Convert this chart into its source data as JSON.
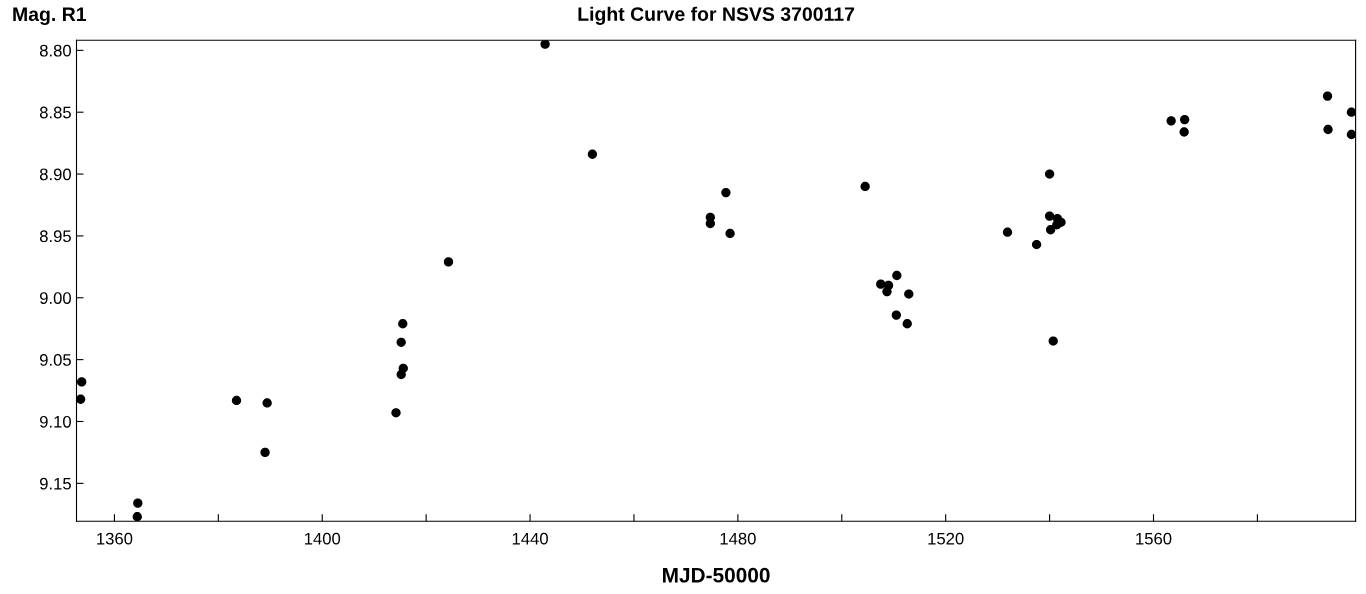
{
  "chart_data": {
    "type": "scatter",
    "title": "Light Curve for NSVS 3700117",
    "xlabel": "MJD-50000",
    "ylabel": "Mag. R1",
    "x": [
      1353.7,
      1353.5,
      1364.5,
      1364.4,
      1383.5,
      1389.4,
      1389.0,
      1414.2,
      1415.5,
      1415.2,
      1415.6,
      1415.2,
      1424.3,
      1442.9,
      1452.0,
      1477.7,
      1474.7,
      1474.7,
      1478.5,
      1504.5,
      1507.5,
      1509.0,
      1508.7,
      1510.6,
      1510.5,
      1512.9,
      1512.6,
      1531.9,
      1537.5,
      1540.0,
      1540.0,
      1540.2,
      1541.5,
      1542.2,
      1541.4,
      1540.7,
      1563.4,
      1566.0,
      1565.9,
      1593.5,
      1593.6,
      1598.1,
      1598.1
    ],
    "values": [
      9.068,
      9.082,
      9.166,
      9.177,
      9.083,
      9.085,
      9.125,
      9.093,
      9.021,
      9.036,
      9.057,
      9.062,
      8.971,
      8.795,
      8.884,
      8.915,
      8.935,
      8.94,
      8.948,
      8.91,
      8.989,
      8.99,
      8.995,
      8.982,
      9.014,
      8.997,
      9.021,
      8.947,
      8.957,
      8.9,
      8.934,
      8.945,
      8.936,
      8.939,
      8.941,
      9.035,
      8.857,
      8.856,
      8.866,
      8.837,
      8.864,
      8.85,
      8.868
    ],
    "color": "#000000",
    "marker": "circle",
    "grid": false,
    "legend": false,
    "xlim": [
      1352.7,
      1598.9
    ],
    "ylim": [
      9.1806,
      8.7918
    ],
    "xticks": [
      {
        "value": 1360,
        "label": "1360"
      },
      {
        "value": 1380,
        "label": null
      },
      {
        "value": 1400,
        "label": "1400"
      },
      {
        "value": 1420,
        "label": null
      },
      {
        "value": 1440,
        "label": "1440"
      },
      {
        "value": 1460,
        "label": null
      },
      {
        "value": 1480,
        "label": "1480"
      },
      {
        "value": 1500,
        "label": null
      },
      {
        "value": 1520,
        "label": "1520"
      },
      {
        "value": 1540,
        "label": null
      },
      {
        "value": 1560,
        "label": "1560"
      },
      {
        "value": 1580,
        "label": null
      }
    ],
    "yticks": [
      {
        "value": 8.8,
        "label": "8.80"
      },
      {
        "value": 8.85,
        "label": "8.85"
      },
      {
        "value": 8.9,
        "label": "8.90"
      },
      {
        "value": 8.95,
        "label": "8.95"
      },
      {
        "value": 9.0,
        "label": "9.00"
      },
      {
        "value": 9.05,
        "label": "9.05"
      },
      {
        "value": 9.1,
        "label": "9.10"
      },
      {
        "value": 9.15,
        "label": "9.15"
      }
    ]
  }
}
